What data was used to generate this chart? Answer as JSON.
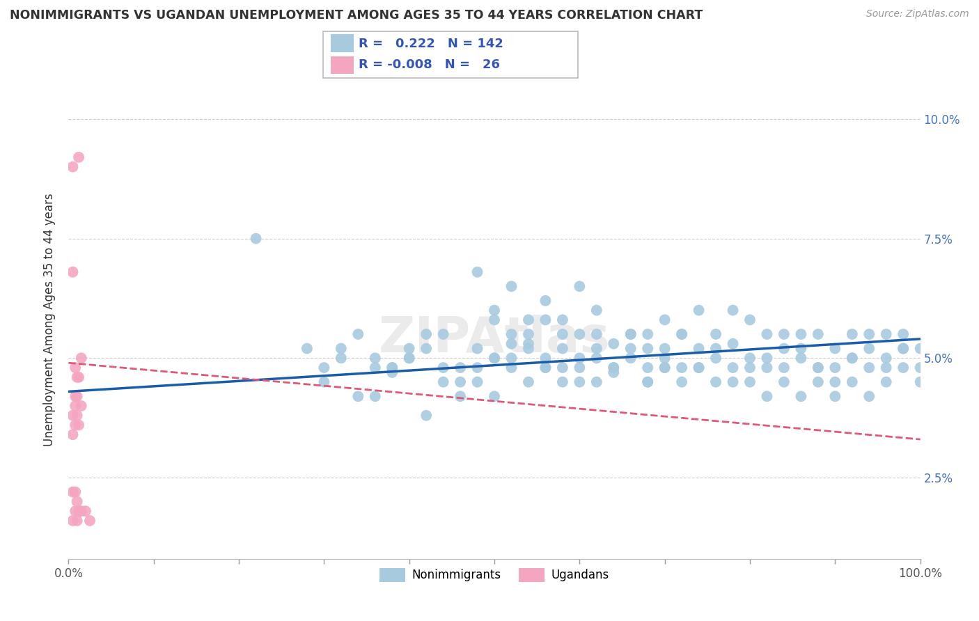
{
  "title": "NONIMMIGRANTS VS UGANDAN UNEMPLOYMENT AMONG AGES 35 TO 44 YEARS CORRELATION CHART",
  "source": "Source: ZipAtlas.com",
  "ylabel": "Unemployment Among Ages 35 to 44 years",
  "xlim": [
    0.0,
    1.0
  ],
  "ylim": [
    0.008,
    0.108
  ],
  "yticks": [
    0.025,
    0.05,
    0.075,
    0.1
  ],
  "ytick_labels": [
    "2.5%",
    "5.0%",
    "7.5%",
    "10.0%"
  ],
  "xtick_positions": [
    0.0,
    0.1,
    0.2,
    0.3,
    0.4,
    0.5,
    0.6,
    0.7,
    0.8,
    0.9,
    1.0
  ],
  "xtick_labels_bottom": [
    "0.0%",
    "",
    "",
    "",
    "",
    "",
    "",
    "",
    "",
    "",
    "100.0%"
  ],
  "blue_R": 0.222,
  "blue_N": 142,
  "pink_R": -0.008,
  "pink_N": 26,
  "blue_color": "#A8CADF",
  "pink_color": "#F4A6C0",
  "blue_line_color": "#1A5CA8",
  "pink_line_color": "#E05878",
  "legend_label_blue": "Nonimmigrants",
  "legend_label_pink": "Ugandans",
  "blue_trend_x0": 0.0,
  "blue_trend_x1": 1.0,
  "blue_trend_y0": 0.043,
  "blue_trend_y1": 0.054,
  "pink_trend_x0": 0.0,
  "pink_trend_x1": 1.0,
  "pink_trend_y0": 0.049,
  "pink_trend_y1": 0.033,
  "blue_scatter_x": [
    0.22,
    0.28,
    0.3,
    0.32,
    0.34,
    0.36,
    0.38,
    0.4,
    0.42,
    0.44,
    0.46,
    0.48,
    0.5,
    0.5,
    0.52,
    0.52,
    0.54,
    0.54,
    0.56,
    0.56,
    0.58,
    0.58,
    0.6,
    0.6,
    0.62,
    0.62,
    0.62,
    0.64,
    0.64,
    0.66,
    0.66,
    0.68,
    0.68,
    0.68,
    0.7,
    0.7,
    0.7,
    0.72,
    0.72,
    0.72,
    0.74,
    0.74,
    0.74,
    0.76,
    0.76,
    0.76,
    0.78,
    0.78,
    0.78,
    0.8,
    0.8,
    0.8,
    0.82,
    0.82,
    0.82,
    0.84,
    0.84,
    0.84,
    0.86,
    0.86,
    0.86,
    0.88,
    0.88,
    0.88,
    0.9,
    0.9,
    0.9,
    0.92,
    0.92,
    0.92,
    0.94,
    0.94,
    0.94,
    0.96,
    0.96,
    0.96,
    0.98,
    0.98,
    0.98,
    1.0,
    1.0,
    1.0,
    0.48,
    0.5,
    0.52,
    0.54,
    0.56,
    0.58,
    0.6,
    0.36,
    0.38,
    0.4,
    0.42,
    0.44,
    0.46,
    0.48,
    0.5,
    0.52,
    0.54,
    0.56,
    0.58,
    0.6,
    0.62,
    0.64,
    0.66,
    0.68,
    0.7,
    0.3,
    0.32,
    0.34,
    0.36,
    0.38,
    0.4,
    0.42,
    0.44,
    0.46,
    0.48,
    0.5,
    0.52,
    0.54,
    0.56,
    0.58,
    0.6,
    0.62,
    0.64,
    0.66,
    0.68,
    0.7,
    0.72,
    0.74,
    0.76,
    0.78,
    0.8,
    0.82,
    0.84,
    0.86,
    0.88,
    0.9,
    0.92,
    0.94,
    0.96,
    0.98
  ],
  "blue_scatter_y": [
    0.075,
    0.052,
    0.045,
    0.05,
    0.042,
    0.048,
    0.047,
    0.05,
    0.038,
    0.048,
    0.042,
    0.045,
    0.05,
    0.06,
    0.053,
    0.048,
    0.045,
    0.053,
    0.05,
    0.058,
    0.048,
    0.055,
    0.048,
    0.055,
    0.06,
    0.052,
    0.045,
    0.053,
    0.047,
    0.05,
    0.055,
    0.055,
    0.048,
    0.045,
    0.048,
    0.052,
    0.058,
    0.055,
    0.048,
    0.045,
    0.052,
    0.048,
    0.06,
    0.05,
    0.055,
    0.045,
    0.053,
    0.048,
    0.06,
    0.058,
    0.05,
    0.045,
    0.048,
    0.055,
    0.042,
    0.052,
    0.048,
    0.045,
    0.055,
    0.05,
    0.042,
    0.048,
    0.055,
    0.045,
    0.052,
    0.048,
    0.042,
    0.05,
    0.055,
    0.045,
    0.048,
    0.052,
    0.042,
    0.055,
    0.05,
    0.045,
    0.048,
    0.052,
    0.055,
    0.048,
    0.052,
    0.045,
    0.068,
    0.058,
    0.065,
    0.058,
    0.062,
    0.058,
    0.065,
    0.05,
    0.048,
    0.052,
    0.055,
    0.045,
    0.048,
    0.052,
    0.042,
    0.05,
    0.055,
    0.048,
    0.052,
    0.045,
    0.05,
    0.048,
    0.055,
    0.052,
    0.048,
    0.048,
    0.052,
    0.055,
    0.042,
    0.048,
    0.05,
    0.052,
    0.055,
    0.045,
    0.048,
    0.05,
    0.055,
    0.052,
    0.048,
    0.045,
    0.05,
    0.055,
    0.048,
    0.052,
    0.045,
    0.05,
    0.055,
    0.048,
    0.052,
    0.045,
    0.048,
    0.05,
    0.055,
    0.052,
    0.048,
    0.045,
    0.05,
    0.055,
    0.048,
    0.052
  ],
  "pink_scatter_x": [
    0.005,
    0.012,
    0.005,
    0.008,
    0.01,
    0.015,
    0.008,
    0.012,
    0.005,
    0.008,
    0.01,
    0.015,
    0.005,
    0.008,
    0.01,
    0.012,
    0.005,
    0.008,
    0.01,
    0.015,
    0.005,
    0.008,
    0.01,
    0.012,
    0.02,
    0.025
  ],
  "pink_scatter_y": [
    0.09,
    0.092,
    0.068,
    0.048,
    0.046,
    0.05,
    0.042,
    0.046,
    0.038,
    0.04,
    0.042,
    0.04,
    0.034,
    0.036,
    0.038,
    0.036,
    0.016,
    0.018,
    0.016,
    0.018,
    0.022,
    0.022,
    0.02,
    0.018,
    0.018,
    0.016
  ]
}
